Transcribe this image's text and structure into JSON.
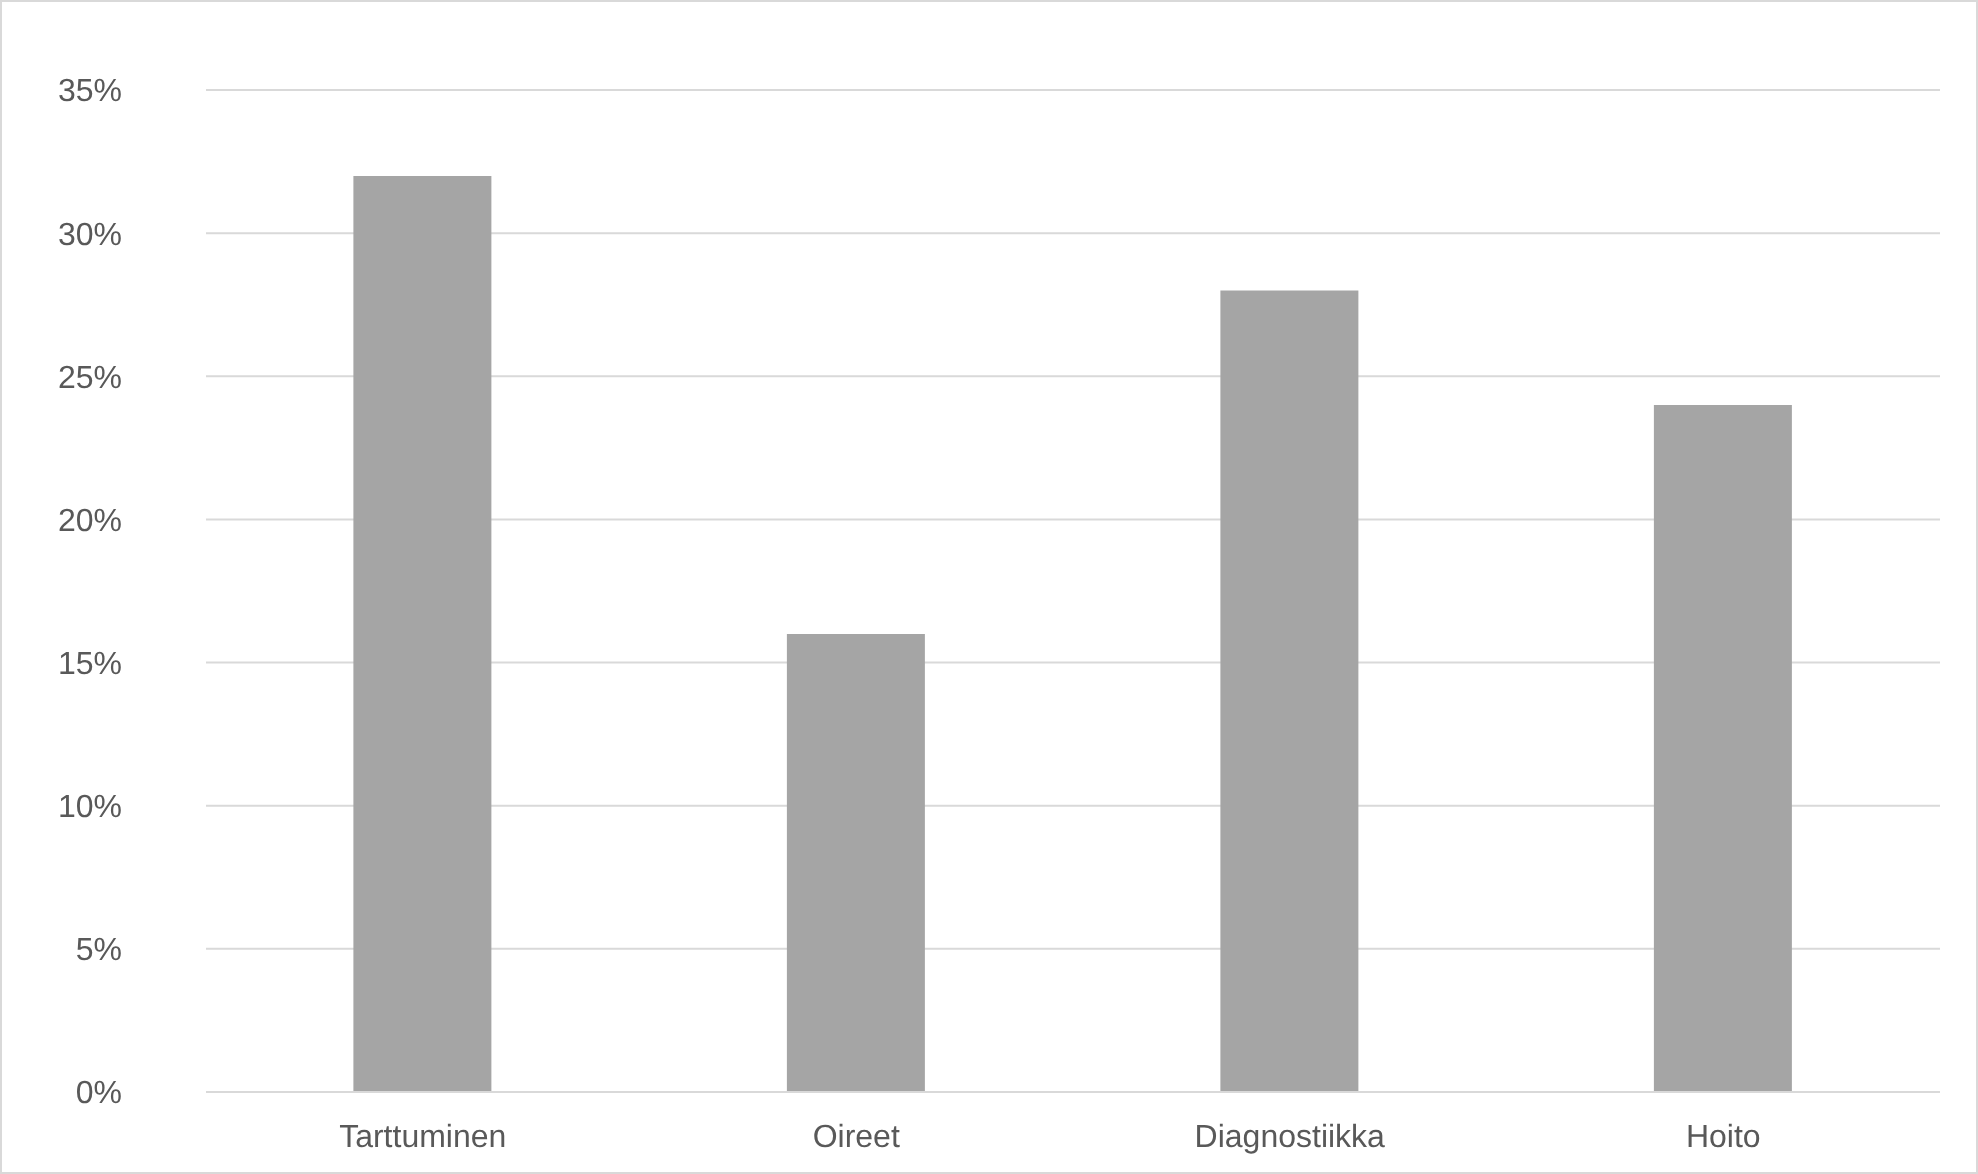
{
  "chart_data": {
    "type": "bar",
    "categories": [
      "Tarttuminen",
      "Oireet",
      "Diagnostiikka",
      "Hoito"
    ],
    "values": [
      32,
      16,
      28,
      24
    ],
    "color": "#a5a5a5",
    "ylim": [
      0,
      35
    ],
    "yticks": [
      {
        "value": 0,
        "label": "0%"
      },
      {
        "value": 5,
        "label": "5%"
      },
      {
        "value": 10,
        "label": "10%"
      },
      {
        "value": 15,
        "label": "15%"
      },
      {
        "value": 20,
        "label": "20%"
      },
      {
        "value": 25,
        "label": "25%"
      },
      {
        "value": 30,
        "label": "30%"
      },
      {
        "value": 35,
        "label": "35%"
      }
    ],
    "grid": "y",
    "legend": false
  }
}
